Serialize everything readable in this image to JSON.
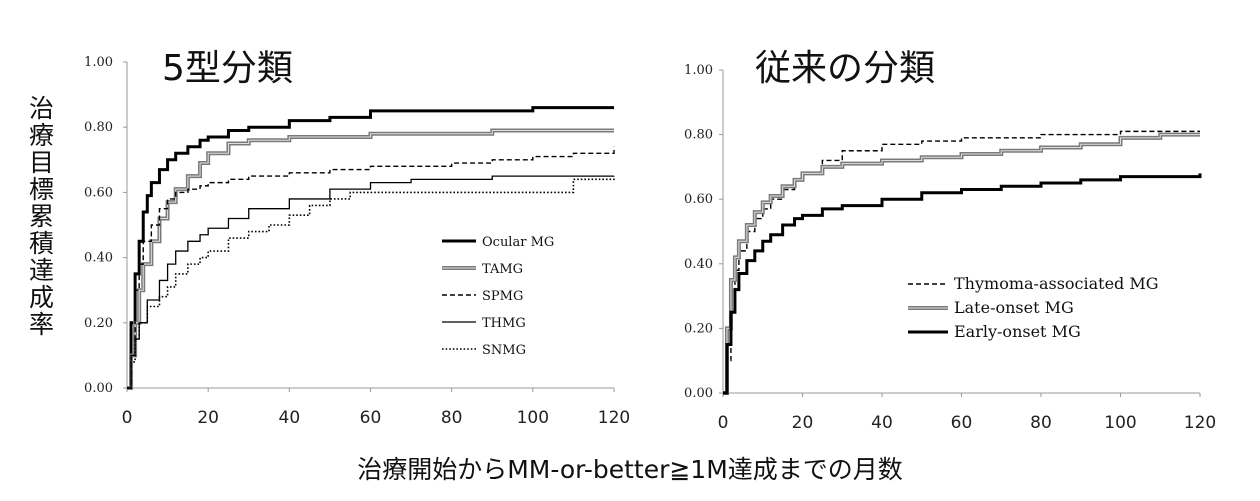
{
  "figure": {
    "ylabel": "治療目標累積達成率",
    "xlabel": "治療開始からMM-or-better≧1M達成までの月数"
  },
  "chart_data": [
    {
      "type": "line",
      "title": "5型分類",
      "xlim": [
        0,
        120
      ],
      "ylim": [
        0,
        1
      ],
      "x_ticks": [
        "0",
        "20",
        "40",
        "60",
        "80",
        "100",
        "120"
      ],
      "y_ticks": [
        "0.00",
        "0.20",
        "0.40",
        "0.60",
        "0.80",
        "1.00"
      ],
      "grid": false,
      "legend": "center-right",
      "series": [
        {
          "name": "Ocular MG",
          "style": "thick",
          "color": "#000000",
          "x": [
            0,
            1,
            2,
            3,
            4,
            5,
            6,
            8,
            10,
            12,
            15,
            18,
            20,
            25,
            30,
            40,
            50,
            60,
            70,
            80,
            90,
            100,
            110,
            120
          ],
          "y": [
            0.0,
            0.2,
            0.35,
            0.45,
            0.54,
            0.59,
            0.63,
            0.67,
            0.7,
            0.72,
            0.74,
            0.76,
            0.77,
            0.79,
            0.8,
            0.82,
            0.83,
            0.85,
            0.85,
            0.85,
            0.85,
            0.86,
            0.86,
            0.86
          ]
        },
        {
          "name": "TAMG",
          "style": "double",
          "color": "#888888",
          "x": [
            0,
            1,
            2,
            3,
            4,
            6,
            8,
            10,
            12,
            15,
            18,
            20,
            25,
            30,
            40,
            50,
            60,
            70,
            80,
            90,
            100,
            110,
            120
          ],
          "y": [
            0.0,
            0.1,
            0.2,
            0.3,
            0.38,
            0.45,
            0.52,
            0.57,
            0.61,
            0.65,
            0.69,
            0.72,
            0.75,
            0.76,
            0.77,
            0.77,
            0.78,
            0.78,
            0.78,
            0.79,
            0.79,
            0.79,
            0.79
          ]
        },
        {
          "name": "SPMG",
          "style": "dashed",
          "color": "#000000",
          "x": [
            0,
            1,
            2,
            3,
            4,
            6,
            8,
            10,
            12,
            15,
            18,
            20,
            25,
            30,
            40,
            50,
            60,
            70,
            80,
            90,
            100,
            110,
            120
          ],
          "y": [
            0.0,
            0.15,
            0.3,
            0.38,
            0.45,
            0.5,
            0.55,
            0.58,
            0.6,
            0.61,
            0.62,
            0.63,
            0.64,
            0.65,
            0.66,
            0.67,
            0.68,
            0.68,
            0.69,
            0.7,
            0.71,
            0.72,
            0.74
          ]
        },
        {
          "name": "THMG",
          "style": "thin",
          "color": "#000000",
          "x": [
            0,
            1,
            2,
            3,
            5,
            8,
            10,
            12,
            15,
            18,
            20,
            25,
            30,
            40,
            50,
            60,
            70,
            80,
            90,
            100,
            110,
            120
          ],
          "y": [
            0.0,
            0.1,
            0.15,
            0.2,
            0.27,
            0.33,
            0.38,
            0.42,
            0.45,
            0.47,
            0.49,
            0.52,
            0.55,
            0.58,
            0.61,
            0.63,
            0.64,
            0.64,
            0.65,
            0.65,
            0.65,
            0.65
          ]
        },
        {
          "name": "SNMG",
          "style": "dotted",
          "color": "#000000",
          "x": [
            0,
            1,
            2,
            3,
            5,
            8,
            10,
            12,
            15,
            18,
            20,
            25,
            30,
            35,
            40,
            45,
            50,
            55,
            60,
            70,
            80,
            90,
            100,
            110,
            120
          ],
          "y": [
            0.0,
            0.08,
            0.15,
            0.2,
            0.25,
            0.28,
            0.31,
            0.35,
            0.38,
            0.4,
            0.42,
            0.46,
            0.48,
            0.5,
            0.53,
            0.56,
            0.58,
            0.6,
            0.6,
            0.6,
            0.6,
            0.6,
            0.6,
            0.64,
            0.65
          ]
        }
      ]
    },
    {
      "type": "line",
      "title": "従来の分類",
      "xlim": [
        0,
        120
      ],
      "ylim": [
        0,
        1
      ],
      "x_ticks": [
        "0",
        "20",
        "40",
        "60",
        "80",
        "100",
        "120"
      ],
      "y_ticks": [
        "0.00",
        "0.20",
        "0.40",
        "0.60",
        "0.80",
        "1.00"
      ],
      "grid": false,
      "legend": "bottom-right",
      "series": [
        {
          "name": "Thymoma-associated MG",
          "style": "dashed",
          "color": "#000000",
          "x": [
            0,
            1,
            2,
            3,
            4,
            6,
            8,
            10,
            12,
            15,
            18,
            20,
            25,
            30,
            40,
            50,
            60,
            70,
            80,
            90,
            100,
            110,
            120
          ],
          "y": [
            0.0,
            0.1,
            0.25,
            0.38,
            0.44,
            0.5,
            0.54,
            0.57,
            0.6,
            0.63,
            0.66,
            0.68,
            0.72,
            0.75,
            0.77,
            0.78,
            0.79,
            0.79,
            0.8,
            0.8,
            0.81,
            0.81,
            0.81
          ]
        },
        {
          "name": "Late-onset MG",
          "style": "double",
          "color": "#888888",
          "x": [
            0,
            1,
            2,
            3,
            4,
            6,
            8,
            10,
            12,
            15,
            18,
            20,
            25,
            30,
            40,
            50,
            60,
            70,
            80,
            90,
            100,
            110,
            120
          ],
          "y": [
            0.0,
            0.2,
            0.35,
            0.42,
            0.47,
            0.52,
            0.56,
            0.59,
            0.61,
            0.64,
            0.66,
            0.68,
            0.7,
            0.71,
            0.72,
            0.73,
            0.74,
            0.75,
            0.76,
            0.77,
            0.79,
            0.8,
            0.8
          ]
        },
        {
          "name": "Early-onset MG",
          "style": "thick",
          "color": "#000000",
          "x": [
            0,
            1,
            2,
            3,
            4,
            6,
            8,
            10,
            12,
            15,
            18,
            20,
            25,
            30,
            40,
            50,
            60,
            70,
            80,
            90,
            100,
            110,
            120
          ],
          "y": [
            0.0,
            0.15,
            0.25,
            0.32,
            0.37,
            0.41,
            0.44,
            0.47,
            0.49,
            0.52,
            0.54,
            0.55,
            0.57,
            0.58,
            0.6,
            0.62,
            0.63,
            0.64,
            0.65,
            0.66,
            0.67,
            0.67,
            0.68
          ]
        }
      ]
    }
  ]
}
